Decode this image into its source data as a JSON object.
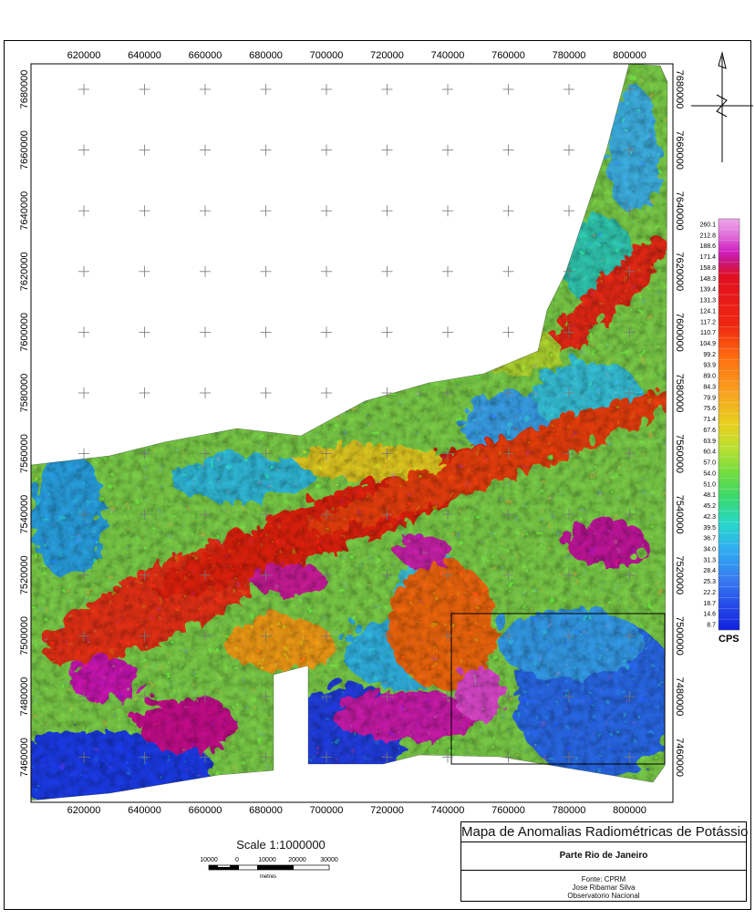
{
  "map": {
    "x_ticks": [
      "620000",
      "640000",
      "660000",
      "680000",
      "700000",
      "720000",
      "740000",
      "760000",
      "780000",
      "800000"
    ],
    "y_ticks_left": [
      "7680000",
      "7660000",
      "7640000",
      "7620000",
      "7600000",
      "7580000",
      "7560000",
      "7540000",
      "7520000",
      "7500000",
      "7480000",
      "7460000"
    ],
    "y_ticks_right": [
      "7680000",
      "7660000",
      "7640000",
      "7620000",
      "7600000",
      "7580000",
      "7560000",
      "7540000",
      "7520000",
      "7500000",
      "7480000",
      "7460000"
    ]
  },
  "legend": {
    "unit": "CPS",
    "values": [
      "260.1",
      "212.8",
      "188.6",
      "171.4",
      "158.8",
      "148.3",
      "139.4",
      "131.3",
      "124.1",
      "117.2",
      "110.7",
      "104.9",
      "99.2",
      "93.9",
      "89.0",
      "84.3",
      "79.9",
      "75.6",
      "71.4",
      "67.6",
      "63.9",
      "60.4",
      "57.0",
      "54.0",
      "51.0",
      "48.1",
      "45.2",
      "42.3",
      "39.5",
      "36.7",
      "34.0",
      "31.3",
      "28.4",
      "25.3",
      "22.2",
      "18.7",
      "14.6",
      "8.7"
    ]
  },
  "scale": {
    "title": "Scale 1:1000000",
    "labels": [
      "10000",
      "0",
      "10000",
      "20000",
      "30000"
    ],
    "unit": "metres"
  },
  "title_block": {
    "title": "Mapa de Anomalias Radiométricas de Potássio",
    "subtitle": "Parte Rio de Janeiro",
    "credits": [
      "Fonte: CPRM",
      "Jose Ribamar Silva",
      "Observatorio Nacional"
    ]
  }
}
